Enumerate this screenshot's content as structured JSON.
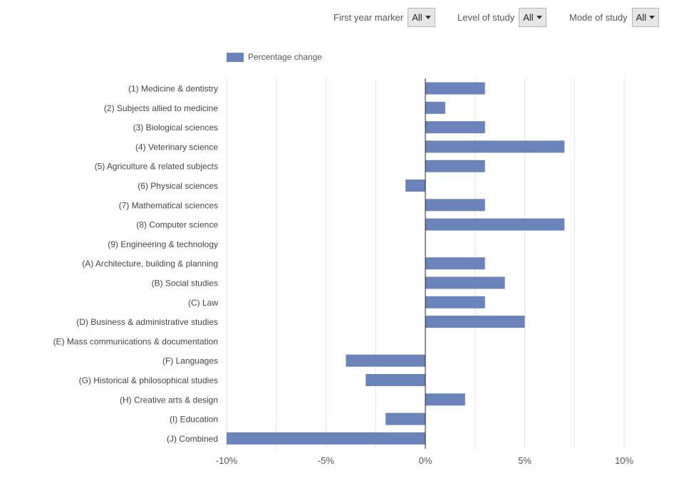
{
  "filters": [
    {
      "label": "First year marker",
      "value": "All"
    },
    {
      "label": "Level of study",
      "value": "All"
    },
    {
      "label": "Mode of study",
      "value": "All"
    }
  ],
  "colors": {
    "bar": "#6a84bb",
    "grid": "#e3e3e3",
    "zero": "#222222"
  },
  "chart_data": {
    "type": "bar",
    "orientation": "horizontal",
    "series": [
      {
        "name": "Percentage change",
        "values": [
          3,
          1,
          3,
          7,
          3,
          -1,
          3,
          7,
          0,
          3,
          4,
          3,
          5,
          0,
          -4,
          -3,
          2,
          -2,
          -10
        ]
      }
    ],
    "categories": [
      "(1) Medicine & dentistry",
      "(2) Subjects allied to medicine",
      "(3) Biological sciences",
      "(4) Veterinary science",
      "(5) Agriculture & related subjects",
      "(6) Physical sciences",
      "(7) Mathematical sciences",
      "(8) Computer science",
      "(9) Engineering & technology",
      "(A) Architecture, building & planning",
      "(B) Social studies",
      "(C) Law",
      "(D) Business & administrative studies",
      "(E) Mass communications & documentation",
      "(F) Languages",
      "(G) Historical & philosophical studies",
      "(H) Creative arts & design",
      "(I) Education",
      "(J) Combined"
    ],
    "xlim": [
      -10,
      12.5
    ],
    "ticks": [
      -10,
      -5,
      0,
      5,
      10
    ],
    "tick_labels": [
      "-10%",
      "-5%",
      "0%",
      "5%",
      "10%"
    ],
    "minor_gridlines": [
      -7.5,
      -2.5,
      2.5,
      7.5,
      12.5
    ],
    "legend": {
      "label": "Percentage change",
      "position": "top-left"
    },
    "grid": true
  }
}
